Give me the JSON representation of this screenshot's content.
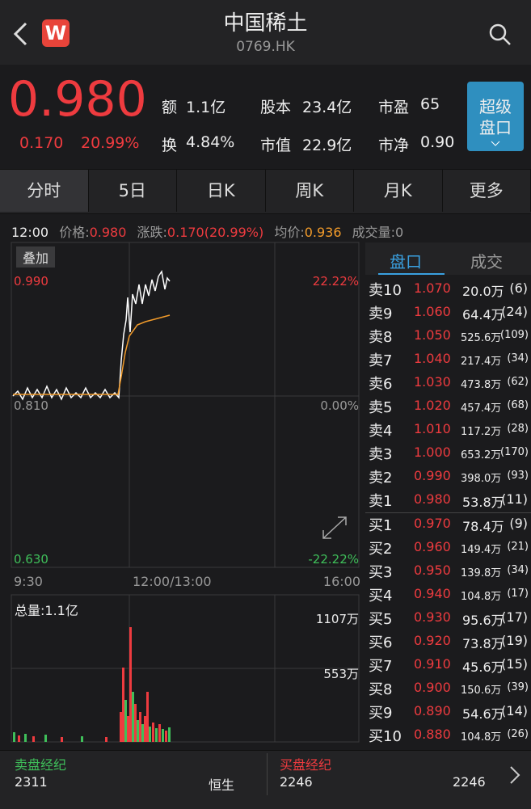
{
  "header": {
    "title": "中国稀土",
    "code": "0769.HK"
  },
  "quote": {
    "price": "0.980",
    "change": "0.170",
    "change_pct": "20.99%",
    "stats": [
      {
        "label": "额",
        "value": "1.1亿"
      },
      {
        "label": "股本",
        "value": "23.4亿"
      },
      {
        "label": "市盈",
        "value": "65"
      },
      {
        "label": "换",
        "value": "4.84%"
      },
      {
        "label": "市值",
        "value": "22.9亿"
      },
      {
        "label": "市净",
        "value": "0.90"
      }
    ],
    "button": [
      "超级",
      "盘口"
    ]
  },
  "tabs": [
    "分时",
    "5日",
    "日K",
    "周K",
    "月K",
    "更多"
  ],
  "info": {
    "time": "12:00",
    "price_label": "价格:",
    "price": "0.980",
    "change_label": "涨跌:",
    "change": "0.170(20.99%)",
    "avg_label": "均价:",
    "avg": "0.936",
    "volume_label": "成交量:",
    "volume": "0"
  },
  "chart": {
    "overlay": "叠加",
    "y_top": "0.990",
    "y_mid": "0.810",
    "y_bottom": "0.630",
    "pct_top": "22.22%",
    "pct_mid": "0.00%",
    "pct_bottom": "-22.22%",
    "x_labels": [
      "9:30",
      "12:00/13:00",
      "16:00"
    ],
    "total_volume": "总量:1.1亿",
    "vol_top": "1107万",
    "vol_mid": "553万"
  },
  "order_book": {
    "tabs": [
      "盘口",
      "成交"
    ],
    "rows": [
      [
        "卖10",
        "1.070",
        "20.0万",
        "(6)"
      ],
      [
        "卖9",
        "1.060",
        "64.4万",
        "(24)"
      ],
      [
        "卖8",
        "1.050",
        "525.6万",
        "(109)"
      ],
      [
        "卖7",
        "1.040",
        "217.4万",
        "(34)"
      ],
      [
        "卖6",
        "1.030",
        "473.8万",
        "(62)"
      ],
      [
        "卖5",
        "1.020",
        "457.4万",
        "(68)"
      ],
      [
        "卖4",
        "1.010",
        "117.2万",
        "(28)"
      ],
      [
        "卖3",
        "1.000",
        "653.2万",
        "(170)"
      ],
      [
        "卖2",
        "0.990",
        "398.0万",
        "(93)"
      ],
      [
        "卖1",
        "0.980",
        "53.8万",
        "(11)"
      ],
      [
        "买1",
        "0.970",
        "78.4万",
        "(9)"
      ],
      [
        "买2",
        "0.960",
        "149.4万",
        "(21)"
      ],
      [
        "买3",
        "0.950",
        "139.8万",
        "(34)"
      ],
      [
        "买4",
        "0.940",
        "104.8万",
        "(17)"
      ],
      [
        "买5",
        "0.930",
        "95.6万",
        "(17)"
      ],
      [
        "买6",
        "0.920",
        "73.8万",
        "(19)"
      ],
      [
        "买7",
        "0.910",
        "45.6万",
        "(15)"
      ],
      [
        "买8",
        "0.900",
        "150.6万",
        "(39)"
      ],
      [
        "买9",
        "0.890",
        "54.6万",
        "(14)"
      ],
      [
        "买10",
        "0.880",
        "104.8万",
        "(26)"
      ]
    ]
  },
  "brokers": {
    "sell_title": "卖盘经纪",
    "sell_code": "2311",
    "sell_name": "恒生",
    "buy_title": "买盘经纪",
    "buy_code": "2246",
    "buy_name": "2246"
  }
}
